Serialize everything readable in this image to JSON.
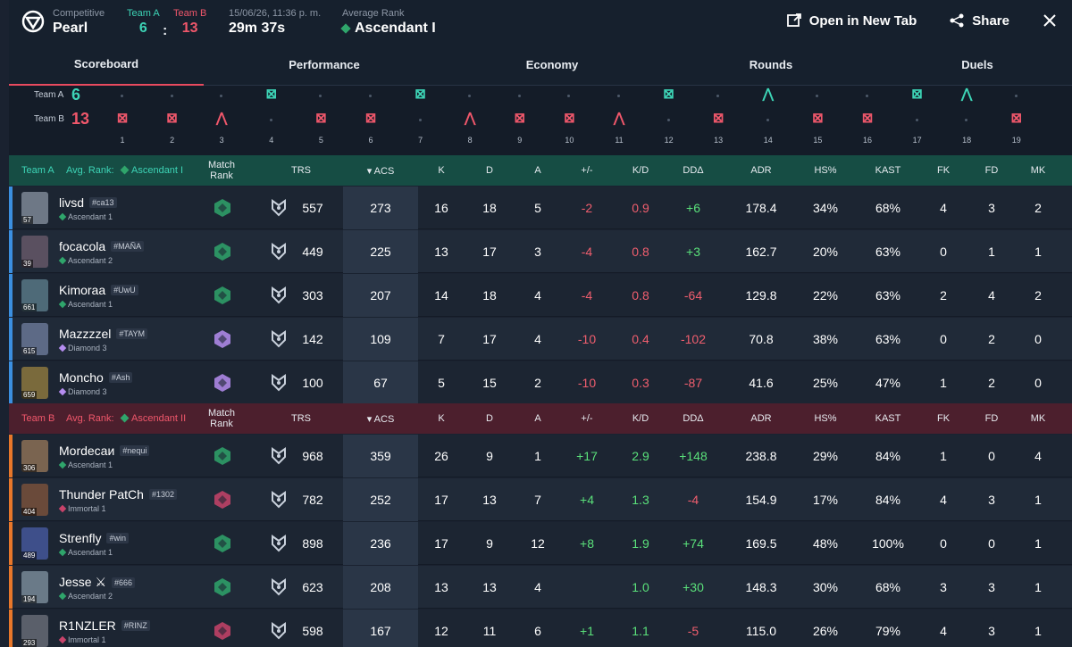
{
  "header": {
    "mode": "Competitive",
    "map": "Pearl",
    "team_a_label": "Team A",
    "team_b_label": "Team B",
    "team_a_score": "6",
    "separator": ":",
    "team_b_score": "13",
    "date": "15/06/26, 11:36 p. m.",
    "duration": "29m 37s",
    "avg_rank_label": "Average Rank",
    "avg_rank": "Ascendant I",
    "open_new_tab": "Open in New Tab",
    "share": "Share"
  },
  "tabs": [
    "Scoreboard",
    "Performance",
    "Economy",
    "Rounds",
    "Duels"
  ],
  "timeline": {
    "team_a_label": "Team A",
    "team_a_score": "6",
    "team_b_label": "Team B",
    "team_b_score": "13",
    "rounds": [
      {
        "n": "1",
        "winner": "B",
        "type": "elim"
      },
      {
        "n": "2",
        "winner": "B",
        "type": "elim"
      },
      {
        "n": "3",
        "winner": "B",
        "type": "defuse"
      },
      {
        "n": "4",
        "winner": "A",
        "type": "elim"
      },
      {
        "n": "5",
        "winner": "B",
        "type": "elim"
      },
      {
        "n": "6",
        "winner": "B",
        "type": "elim"
      },
      {
        "n": "7",
        "winner": "A",
        "type": "elim"
      },
      {
        "n": "8",
        "winner": "B",
        "type": "defuse"
      },
      {
        "n": "9",
        "winner": "B",
        "type": "elim"
      },
      {
        "n": "10",
        "winner": "B",
        "type": "elim"
      },
      {
        "n": "11",
        "winner": "B",
        "type": "defuse"
      },
      {
        "n": "12",
        "winner": "A",
        "type": "elim"
      },
      {
        "n": "13",
        "winner": "B",
        "type": "elim"
      },
      {
        "n": "14",
        "winner": "A",
        "type": "defuse"
      },
      {
        "n": "15",
        "winner": "B",
        "type": "elim"
      },
      {
        "n": "16",
        "winner": "B",
        "type": "elim"
      },
      {
        "n": "17",
        "winner": "A",
        "type": "elim"
      },
      {
        "n": "18",
        "winner": "A",
        "type": "defuse"
      },
      {
        "n": "19",
        "winner": "B",
        "type": "elim"
      }
    ]
  },
  "columns": [
    "Match Rank",
    "TRS",
    "ACS",
    "K",
    "D",
    "A",
    "+/-",
    "K/D",
    "DDΔ",
    "ADR",
    "HS%",
    "KAST",
    "FK",
    "FD",
    "MK"
  ],
  "team_a": {
    "team": "Team A",
    "avg_label": "Avg. Rank:",
    "avg_rank": "Ascendant I",
    "players": [
      {
        "name": "livsd",
        "tag": "#ca13",
        "rank": "Ascendant 1",
        "level": "57",
        "trs": "557",
        "acs": "273",
        "k": "16",
        "d": "18",
        "a": "5",
        "pm": "-2",
        "kd": "0.9",
        "dd": "+6",
        "adr": "178.4",
        "hs": "34%",
        "kast": "68%",
        "fk": "4",
        "fd": "3",
        "mk": "2"
      },
      {
        "name": "focacola",
        "tag": "#MAÑA",
        "rank": "Ascendant 2",
        "level": "39",
        "trs": "449",
        "acs": "225",
        "k": "13",
        "d": "17",
        "a": "3",
        "pm": "-4",
        "kd": "0.8",
        "dd": "+3",
        "adr": "162.7",
        "hs": "20%",
        "kast": "63%",
        "fk": "0",
        "fd": "1",
        "mk": "1"
      },
      {
        "name": "Kimoraa",
        "tag": "#UwU",
        "rank": "Ascendant 1",
        "level": "661",
        "trs": "303",
        "acs": "207",
        "k": "14",
        "d": "18",
        "a": "4",
        "pm": "-4",
        "kd": "0.8",
        "dd": "-64",
        "adr": "129.8",
        "hs": "22%",
        "kast": "63%",
        "fk": "2",
        "fd": "4",
        "mk": "2"
      },
      {
        "name": "Mazzzzel",
        "tag": "#TAYM",
        "rank": "Diamond 3",
        "level": "615",
        "trs": "142",
        "acs": "109",
        "k": "7",
        "d": "17",
        "a": "4",
        "pm": "-10",
        "kd": "0.4",
        "dd": "-102",
        "adr": "70.8",
        "hs": "38%",
        "kast": "63%",
        "fk": "0",
        "fd": "2",
        "mk": "0"
      },
      {
        "name": "Moncho",
        "tag": "#Ash",
        "rank": "Diamond 3",
        "level": "659",
        "trs": "100",
        "acs": "67",
        "k": "5",
        "d": "15",
        "a": "2",
        "pm": "-10",
        "kd": "0.3",
        "dd": "-87",
        "adr": "41.6",
        "hs": "25%",
        "kast": "47%",
        "fk": "1",
        "fd": "2",
        "mk": "0"
      }
    ]
  },
  "team_b": {
    "team": "Team B",
    "avg_label": "Avg. Rank:",
    "avg_rank": "Ascendant II",
    "players": [
      {
        "name": "Mordecaи",
        "tag": "#nequi",
        "rank": "Ascendant 1",
        "level": "306",
        "trs": "968",
        "acs": "359",
        "k": "26",
        "d": "9",
        "a": "1",
        "pm": "+17",
        "kd": "2.9",
        "dd": "+148",
        "adr": "238.8",
        "hs": "29%",
        "kast": "84%",
        "fk": "1",
        "fd": "0",
        "mk": "4"
      },
      {
        "name": "Thunder PatCh",
        "tag": "#1302",
        "rank": "Immortal 1",
        "level": "404",
        "trs": "782",
        "acs": "252",
        "k": "17",
        "d": "13",
        "a": "7",
        "pm": "+4",
        "kd": "1.3",
        "dd": "-4",
        "adr": "154.9",
        "hs": "17%",
        "kast": "84%",
        "fk": "4",
        "fd": "3",
        "mk": "1"
      },
      {
        "name": "Strenfly",
        "tag": "#win",
        "rank": "Ascendant 1",
        "level": "489",
        "trs": "898",
        "acs": "236",
        "k": "17",
        "d": "9",
        "a": "12",
        "pm": "+8",
        "kd": "1.9",
        "dd": "+74",
        "adr": "169.5",
        "hs": "48%",
        "kast": "100%",
        "fk": "0",
        "fd": "0",
        "mk": "1"
      },
      {
        "name": "Jesse ⚔",
        "tag": "#666",
        "rank": "Ascendant 2",
        "level": "194",
        "trs": "623",
        "acs": "208",
        "k": "13",
        "d": "13",
        "a": "4",
        "pm": "",
        "kd": "1.0",
        "dd": "+30",
        "adr": "148.3",
        "hs": "30%",
        "kast": "68%",
        "fk": "3",
        "fd": "3",
        "mk": "1"
      },
      {
        "name": "R1NZLER",
        "tag": "#RINZ",
        "rank": "Immortal 1",
        "level": "293",
        "trs": "598",
        "acs": "167",
        "k": "12",
        "d": "11",
        "a": "6",
        "pm": "+1",
        "kd": "1.1",
        "dd": "-5",
        "adr": "115.0",
        "hs": "26%",
        "kast": "79%",
        "fk": "4",
        "fd": "3",
        "mk": "1"
      }
    ]
  },
  "colors": {
    "team_a": "#3dd4b6",
    "team_b": "#f0576b",
    "positive": "#5ae07a",
    "negative": "#f05e6e"
  }
}
